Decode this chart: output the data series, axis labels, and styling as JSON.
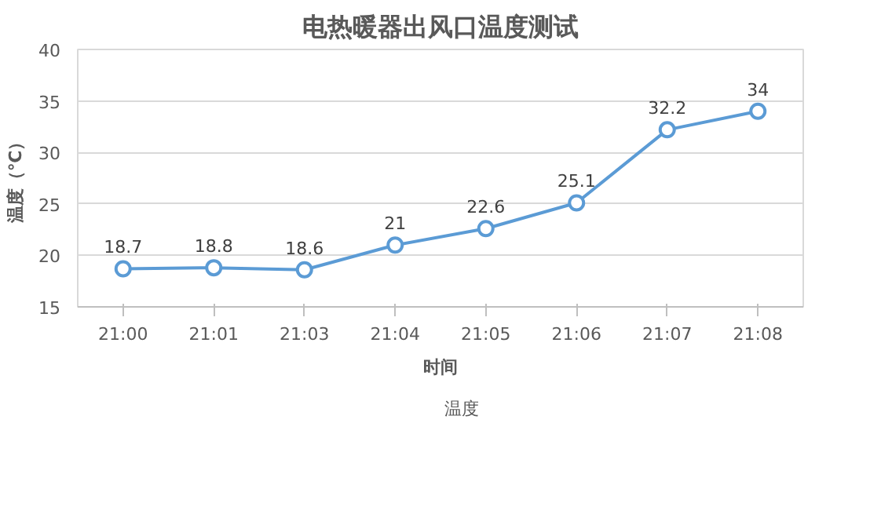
{
  "chart_data": {
    "type": "line",
    "title": "电热暖器出风口温度测试",
    "xlabel": "时间",
    "ylabel": "温度（℃）",
    "categories": [
      "21:00",
      "21:01",
      "21:03",
      "21:04",
      "21:05",
      "21:06",
      "21:07",
      "21:08"
    ],
    "series": [
      {
        "name": "温度",
        "color": "#5b9bd5",
        "values": [
          18.7,
          18.8,
          18.6,
          21,
          22.6,
          25.1,
          32.2,
          34
        ]
      }
    ],
    "ylim": [
      15,
      40
    ],
    "yticks": [
      15,
      20,
      25,
      30,
      35,
      40
    ],
    "grid": "y",
    "legend": "bottom",
    "marker": "circle",
    "line_style": "solid",
    "data_labels": true
  }
}
